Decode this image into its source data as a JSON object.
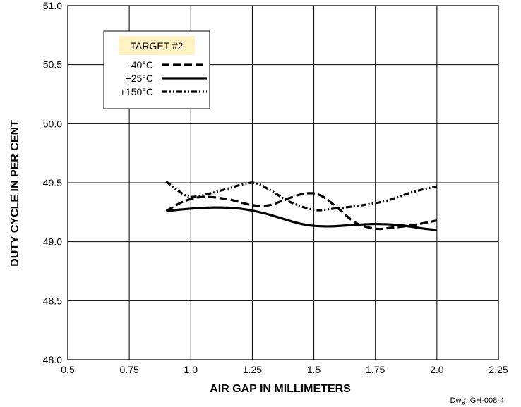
{
  "chart_data": {
    "type": "line",
    "xlabel": "AIR GAP IN MILLIMETERS",
    "ylabel": "DUTY CYCLE IN PER CENT",
    "xlim": [
      0.5,
      2.25
    ],
    "ylim": [
      48.0,
      51.0
    ],
    "x_ticks": [
      "0.5",
      "0.75",
      "1.0",
      "1.25",
      "1.5",
      "1.75",
      "2.0",
      "2.25"
    ],
    "y_ticks": [
      "48.0",
      "48.5",
      "49.0",
      "49.5",
      "50.0",
      "50.5",
      "51.0"
    ],
    "x_tick_values": [
      0.5,
      0.75,
      1.0,
      1.25,
      1.5,
      1.75,
      2.0,
      2.25
    ],
    "y_tick_values": [
      48.0,
      48.5,
      49.0,
      49.5,
      50.0,
      50.5,
      51.0
    ],
    "grid": true,
    "legend_title": "TARGET #2",
    "legend_placement": "top-left",
    "note": "Dwg. GH-008-4",
    "series": [
      {
        "name": "-40°C",
        "style": "dashed",
        "x": [
          0.9,
          0.97,
          1.05,
          1.15,
          1.25,
          1.32,
          1.4,
          1.47,
          1.53,
          1.6,
          1.67,
          1.75,
          1.82,
          1.9,
          2.0
        ],
        "y": [
          49.26,
          49.34,
          49.38,
          49.36,
          49.31,
          49.31,
          49.37,
          49.41,
          49.39,
          49.28,
          49.16,
          49.11,
          49.12,
          49.14,
          49.18
        ]
      },
      {
        "name": "+25°C",
        "style": "solid",
        "x": [
          0.9,
          1.0,
          1.1,
          1.2,
          1.3,
          1.45,
          1.55,
          1.65,
          1.75,
          1.85,
          1.95,
          2.0
        ],
        "y": [
          49.26,
          49.28,
          49.29,
          49.28,
          49.24,
          49.15,
          49.13,
          49.14,
          49.15,
          49.14,
          49.11,
          49.1
        ]
      },
      {
        "name": "+150°C",
        "style": "dash-dot-dot",
        "x": [
          0.9,
          0.95,
          1.0,
          1.08,
          1.15,
          1.25,
          1.32,
          1.4,
          1.5,
          1.58,
          1.7,
          1.8,
          1.9,
          2.0
        ],
        "y": [
          49.51,
          49.43,
          49.38,
          49.41,
          49.45,
          49.5,
          49.44,
          49.34,
          49.27,
          49.28,
          49.31,
          49.35,
          49.42,
          49.47
        ]
      }
    ]
  }
}
